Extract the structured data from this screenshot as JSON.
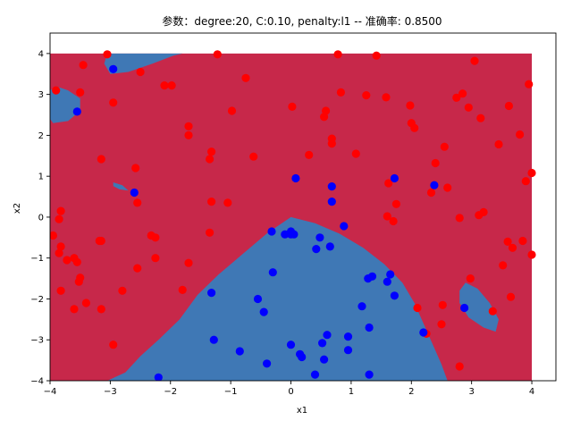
{
  "chart_data": {
    "type": "scatter",
    "title": "参数：degree:20, C:0.10, penalty:l1 -- 准确率: 0.8500",
    "xlabel": "x1",
    "ylabel": "x2",
    "xlim": [
      -4,
      4.4
    ],
    "ylim": [
      -4,
      4.5
    ],
    "xticks": [
      -4,
      -3,
      -2,
      -1,
      0,
      1,
      2,
      3,
      4
    ],
    "yticks": [
      -4,
      -3,
      -2,
      -1,
      0,
      1,
      2,
      3,
      4
    ],
    "grid": false,
    "background_region": {
      "x": [
        -4,
        4
      ],
      "y": [
        -4,
        4
      ],
      "color": "#c7284a"
    },
    "region_colors": {
      "class_0": "#c7284a",
      "class_1": "#3f78b5"
    },
    "regions_class_1": [
      [
        [
          -3.05,
          -4
        ],
        [
          -2.75,
          -3.8
        ],
        [
          -2.5,
          -3.4
        ],
        [
          -2.2,
          -3.0
        ],
        [
          -1.85,
          -2.5
        ],
        [
          -1.55,
          -1.9
        ],
        [
          -1.2,
          -1.4
        ],
        [
          -0.8,
          -0.9
        ],
        [
          -0.4,
          -0.4
        ],
        [
          0,
          0
        ],
        [
          0.4,
          -0.15
        ],
        [
          0.8,
          -0.4
        ],
        [
          1.2,
          -0.75
        ],
        [
          1.55,
          -1.15
        ],
        [
          1.85,
          -1.6
        ],
        [
          2.05,
          -2.1
        ],
        [
          2.2,
          -2.6
        ],
        [
          2.35,
          -3.1
        ],
        [
          2.5,
          -3.6
        ],
        [
          2.6,
          -4
        ]
      ],
      [
        [
          -3.05,
          4
        ],
        [
          -3.1,
          3.75
        ],
        [
          -3.0,
          3.5
        ],
        [
          -2.7,
          3.55
        ],
        [
          -2.3,
          3.75
        ],
        [
          -1.95,
          3.95
        ],
        [
          -1.8,
          4
        ]
      ],
      [
        [
          -4,
          3.1
        ],
        [
          -3.9,
          3.2
        ],
        [
          -3.7,
          3.1
        ],
        [
          -3.5,
          2.9
        ],
        [
          -3.5,
          2.6
        ],
        [
          -3.7,
          2.35
        ],
        [
          -3.95,
          2.3
        ],
        [
          -4,
          2.4
        ]
      ],
      [
        [
          -2.95,
          0.85
        ],
        [
          -2.8,
          0.78
        ],
        [
          -2.7,
          0.65
        ],
        [
          -2.85,
          0.68
        ],
        [
          -2.95,
          0.76
        ]
      ],
      [
        [
          2.8,
          -1.8
        ],
        [
          2.9,
          -1.6
        ],
        [
          3.1,
          -1.75
        ],
        [
          3.3,
          -2.1
        ],
        [
          3.45,
          -2.5
        ],
        [
          3.4,
          -2.8
        ],
        [
          3.2,
          -2.7
        ],
        [
          2.95,
          -2.45
        ],
        [
          2.8,
          -2.1
        ]
      ]
    ],
    "series": [
      {
        "color": "#ff0000",
        "points": [
          [
            -3.9,
            3.1
          ],
          [
            -3.05,
            3.98
          ],
          [
            -3.45,
            3.72
          ],
          [
            -2.5,
            3.55
          ],
          [
            -2.1,
            3.22
          ],
          [
            -1.98,
            3.22
          ],
          [
            -1.22,
            3.98
          ],
          [
            -0.75,
            3.4
          ],
          [
            0.78,
            3.98
          ],
          [
            0.83,
            3.05
          ],
          [
            1.42,
            3.95
          ],
          [
            1.25,
            2.98
          ],
          [
            1.58,
            2.93
          ],
          [
            1.98,
            2.73
          ],
          [
            2.75,
            2.92
          ],
          [
            2.85,
            3.02
          ],
          [
            3.05,
            3.82
          ],
          [
            2.95,
            2.68
          ],
          [
            3.15,
            2.42
          ],
          [
            3.62,
            2.72
          ],
          [
            3.95,
            3.25
          ],
          [
            0.02,
            2.7
          ],
          [
            0.55,
            2.45
          ],
          [
            0.58,
            2.6
          ],
          [
            0.68,
            1.92
          ],
          [
            0.68,
            1.8
          ],
          [
            1.08,
            1.55
          ],
          [
            2.0,
            2.3
          ],
          [
            2.05,
            2.18
          ],
          [
            2.55,
            1.72
          ],
          [
            3.45,
            1.78
          ],
          [
            3.8,
            2.02
          ],
          [
            3.9,
            0.88
          ],
          [
            4.0,
            1.08
          ],
          [
            -3.5,
            3.05
          ],
          [
            -2.95,
            2.8
          ],
          [
            -1.7,
            2.22
          ],
          [
            -1.7,
            2.0
          ],
          [
            -1.35,
            1.42
          ],
          [
            -1.32,
            1.6
          ],
          [
            -0.98,
            2.6
          ],
          [
            -0.62,
            1.48
          ],
          [
            0.3,
            1.52
          ],
          [
            -3.15,
            1.42
          ],
          [
            -2.58,
            1.2
          ],
          [
            -2.55,
            0.35
          ],
          [
            -1.32,
            0.38
          ],
          [
            -1.05,
            0.35
          ],
          [
            -1.35,
            -0.38
          ],
          [
            -3.82,
            0.15
          ],
          [
            -3.85,
            -0.05
          ],
          [
            -3.95,
            -0.45
          ],
          [
            -3.82,
            -0.72
          ],
          [
            -3.85,
            -0.88
          ],
          [
            -3.72,
            -1.05
          ],
          [
            -3.6,
            -1.0
          ],
          [
            -3.55,
            -1.1
          ],
          [
            -3.15,
            -0.58
          ],
          [
            -3.18,
            -0.58
          ],
          [
            -2.32,
            -0.45
          ],
          [
            -2.25,
            -0.5
          ],
          [
            -2.25,
            -1.0
          ],
          [
            -2.55,
            -1.25
          ],
          [
            -1.7,
            -1.12
          ],
          [
            -1.8,
            -1.78
          ],
          [
            -3.82,
            -1.8
          ],
          [
            -3.5,
            -1.48
          ],
          [
            -3.52,
            -1.58
          ],
          [
            -3.4,
            -2.1
          ],
          [
            -3.6,
            -2.25
          ],
          [
            -3.15,
            -2.25
          ],
          [
            -2.8,
            -1.8
          ],
          [
            -2.95,
            -3.12
          ],
          [
            1.6,
            0.02
          ],
          [
            1.62,
            0.83
          ],
          [
            1.75,
            0.32
          ],
          [
            1.7,
            -0.1
          ],
          [
            2.33,
            0.6
          ],
          [
            2.4,
            1.32
          ],
          [
            2.6,
            0.72
          ],
          [
            2.8,
            -0.02
          ],
          [
            3.12,
            0.05
          ],
          [
            3.2,
            0.12
          ],
          [
            3.6,
            -0.6
          ],
          [
            3.68,
            -0.75
          ],
          [
            3.85,
            -0.58
          ],
          [
            4.0,
            -0.92
          ],
          [
            3.52,
            -1.18
          ],
          [
            3.65,
            -1.95
          ],
          [
            2.98,
            -1.5
          ],
          [
            2.1,
            -2.22
          ],
          [
            2.25,
            -2.85
          ],
          [
            2.5,
            -2.62
          ],
          [
            2.52,
            -2.15
          ],
          [
            2.8,
            -3.65
          ],
          [
            3.35,
            -2.3
          ]
        ]
      },
      {
        "color": "#0000ff",
        "points": [
          [
            -2.95,
            3.62
          ],
          [
            -3.55,
            2.58
          ],
          [
            -2.6,
            0.6
          ],
          [
            0.08,
            0.95
          ],
          [
            0.68,
            0.75
          ],
          [
            1.72,
            0.95
          ],
          [
            2.38,
            0.78
          ],
          [
            0.68,
            0.38
          ],
          [
            0.88,
            -0.22
          ],
          [
            -0.1,
            -0.42
          ],
          [
            0.0,
            -0.35
          ],
          [
            0.0,
            -0.42
          ],
          [
            -0.32,
            -0.35
          ],
          [
            0.05,
            -0.42
          ],
          [
            0.48,
            -0.5
          ],
          [
            0.42,
            -0.78
          ],
          [
            0.65,
            -0.72
          ],
          [
            -0.3,
            -1.35
          ],
          [
            -1.32,
            -1.85
          ],
          [
            -0.55,
            -2.0
          ],
          [
            -0.45,
            -2.32
          ],
          [
            1.28,
            -1.5
          ],
          [
            1.35,
            -1.45
          ],
          [
            1.6,
            -1.58
          ],
          [
            1.65,
            -1.4
          ],
          [
            1.72,
            -1.92
          ],
          [
            1.18,
            -2.18
          ],
          [
            1.3,
            -2.7
          ],
          [
            2.2,
            -2.82
          ],
          [
            2.88,
            -2.22
          ],
          [
            -1.28,
            -3.0
          ],
          [
            -0.85,
            -3.28
          ],
          [
            -0.4,
            -3.58
          ],
          [
            0.0,
            -3.12
          ],
          [
            0.15,
            -3.35
          ],
          [
            0.18,
            -3.42
          ],
          [
            0.52,
            -3.08
          ],
          [
            0.6,
            -2.88
          ],
          [
            0.55,
            -3.48
          ],
          [
            0.95,
            -2.92
          ],
          [
            0.95,
            -3.25
          ],
          [
            0.4,
            -3.85
          ],
          [
            1.3,
            -3.85
          ],
          [
            -2.2,
            -3.92
          ]
        ]
      }
    ]
  }
}
